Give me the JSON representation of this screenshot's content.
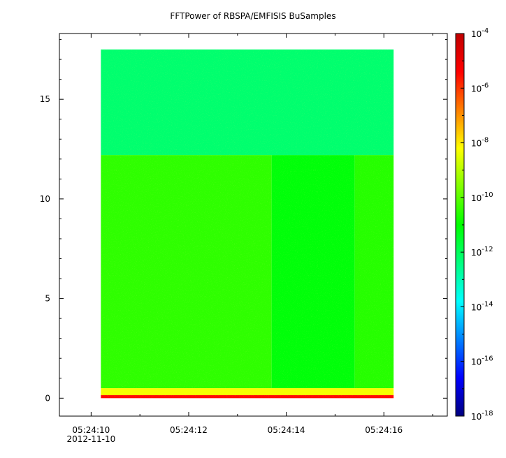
{
  "chart_data": {
    "type": "heatmap",
    "title": "FFTPower of RBSPA/EMFISIS  BuSamples",
    "xlabel": "",
    "ylabel": "",
    "x_tick_labels": [
      "05:24:10",
      "05:24:12",
      "05:24:14",
      "05:24:16"
    ],
    "x_tick_values": [
      10,
      12,
      14,
      16
    ],
    "x_date_label": "2012-11-10",
    "xlim": [
      9.35,
      17.3
    ],
    "data_x_range": [
      10.2,
      16.2
    ],
    "y_tick_labels": [
      "0",
      "5",
      "10",
      "15"
    ],
    "y_tick_values": [
      0,
      5,
      10,
      15
    ],
    "ylim": [
      -0.9,
      18.3
    ],
    "data_y_range": [
      0,
      17.5
    ],
    "colorbar": {
      "scale": "log",
      "range": [
        1e-18,
        0.0001
      ],
      "tick_exponents": [
        "-4",
        "-6",
        "-8",
        "-10",
        "-12",
        "-14",
        "-16",
        "-18"
      ],
      "tick_base": "10",
      "colormap": [
        "#00007f",
        "#0000ff",
        "#0080ff",
        "#00ffff",
        "#00ff80",
        "#00ff00",
        "#80ff00",
        "#ffff00",
        "#ff8000",
        "#ff0000",
        "#c00000"
      ]
    },
    "regions": [
      {
        "x": [
          10.2,
          16.2
        ],
        "y": [
          12.2,
          17.5
        ],
        "log_power": -12.2
      },
      {
        "x": [
          10.2,
          13.7
        ],
        "y": [
          0.5,
          12.2
        ],
        "log_power": -10.5
      },
      {
        "x": [
          13.7,
          15.4
        ],
        "y": [
          0.5,
          12.2
        ],
        "log_power": -11.1
      },
      {
        "x": [
          15.4,
          16.2
        ],
        "y": [
          0.5,
          12.2
        ],
        "log_power": -10.6
      },
      {
        "x": [
          10.2,
          16.2
        ],
        "y": [
          0.15,
          0.5
        ],
        "log_power": -8.3
      },
      {
        "x": [
          10.2,
          16.2
        ],
        "y": [
          0.0,
          0.15
        ],
        "log_power": -5.5
      }
    ]
  }
}
